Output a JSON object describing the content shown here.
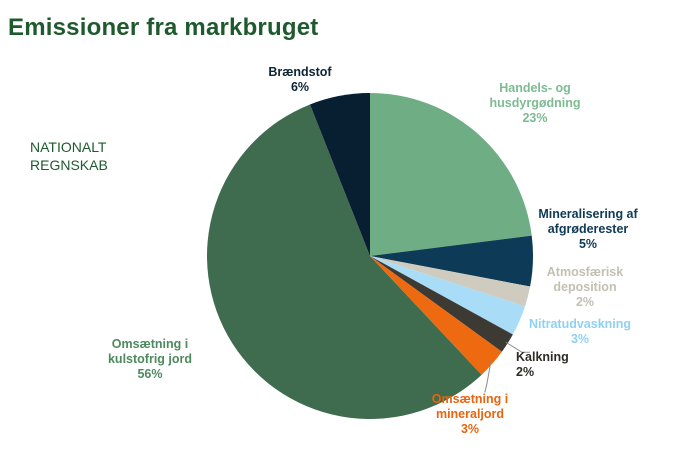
{
  "title": "Emissioner fra markbruget",
  "side_note": "NATIONALT\nREGNSKAB",
  "chart_data": {
    "type": "pie",
    "slices": [
      {
        "lines": [
          "Handels- og",
          "husdyrgødning"
        ],
        "value": 23,
        "pct_label": "23%",
        "color": "#6fae85",
        "label_color": "#7dbb92"
      },
      {
        "lines": [
          "Mineralisering af",
          "afgrøderester"
        ],
        "value": 5,
        "pct_label": "5%",
        "color": "#0d3a56",
        "label_color": "#0d3a56"
      },
      {
        "lines": [
          "Atmosfærisk",
          "deposition"
        ],
        "value": 2,
        "pct_label": "2%",
        "color": "#cfccbf",
        "label_color": "#c3c0b3"
      },
      {
        "lines": [
          "Nitratudvaskning"
        ],
        "value": 3,
        "pct_label": "3%",
        "color": "#a8dcf7",
        "label_color": "#8fd0f3"
      },
      {
        "lines": [
          "Kalkning"
        ],
        "value": 2,
        "pct_label": "2%",
        "color": "#3c3a33",
        "label_color": "#2e2c26"
      },
      {
        "lines": [
          "Omsætning i",
          "mineraljord"
        ],
        "value": 3,
        "pct_label": "3%",
        "color": "#ee6a10",
        "label_color": "#e8650f"
      },
      {
        "lines": [
          "Omsætning i",
          "kulstofrig jord"
        ],
        "value": 56,
        "pct_label": "56%",
        "color": "#3f6b4f",
        "label_color": "#4e8a5f"
      },
      {
        "lines": [
          "Brændstof"
        ],
        "value": 6,
        "pct_label": "6%",
        "color": "#071f30",
        "label_color": "#0b2436"
      }
    ]
  }
}
